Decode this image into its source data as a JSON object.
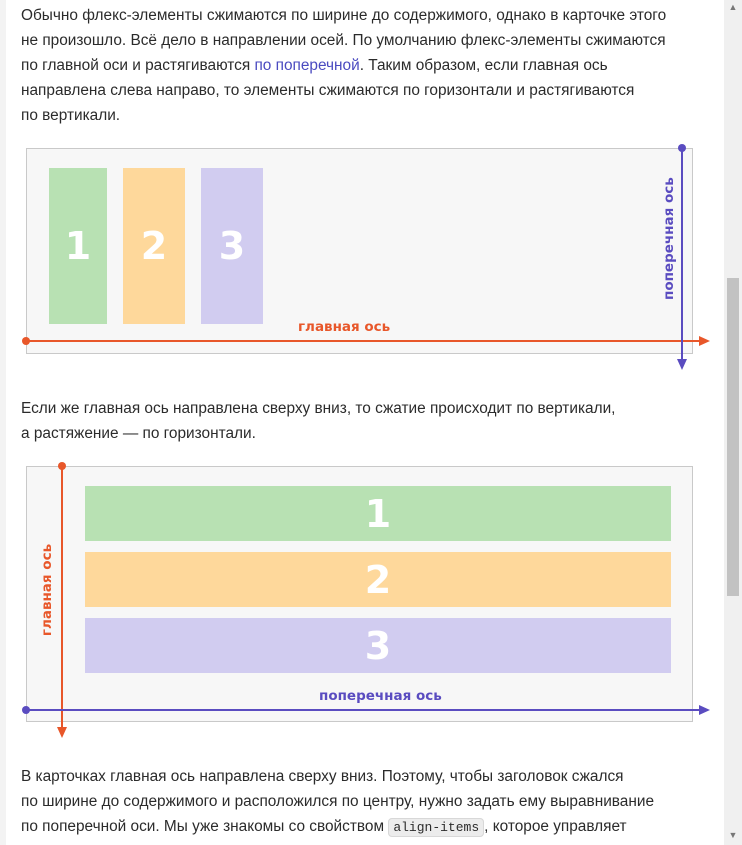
{
  "paragraph1": {
    "line1": "Обычно флекс-элементы сжимаются по ширине до содержимого, однако в карточке этого",
    "line2": "не произошло. Всё дело в направлении осей. По умолчанию флекс-элементы сжимаются",
    "line3_before": "по главной оси и растягиваются ",
    "line3_link": "по поперечной",
    "line3_after": ". Таким образом, если главная ось",
    "line4": "направлена слева направо, то элементы сжимаются по горизонтали и растягиваются",
    "line5": "по вертикали."
  },
  "diagram1": {
    "items": [
      "1",
      "2",
      "3"
    ],
    "main_axis_label": "главная ось",
    "cross_axis_label": "поперечная ось"
  },
  "paragraph2": {
    "line1": "Если же главная ось направлена сверху вниз, то сжатие происходит по вертикали,",
    "line2": "а растяжение — по горизонтали."
  },
  "diagram2": {
    "items": [
      "1",
      "2",
      "3"
    ],
    "main_axis_label": "главная ось",
    "cross_axis_label": "поперечная ось"
  },
  "paragraph3": {
    "line1": "В карточках главная ось направлена сверху вниз. Поэтому, чтобы заголовок сжался",
    "line2": "по ширине до содержимого и расположился по центру, нужно задать ему выравнивание",
    "line3_before": "по поперечной оси. Мы уже знакомы со свойством ",
    "line3_code": "align-items",
    "line3_after": ", которое управляет"
  },
  "colors": {
    "main_axis": "#e8572a",
    "cross_axis": "#5a4cc0",
    "item1": "#b8e1b3",
    "item2": "#fed89b",
    "item3": "#d1ccf0"
  }
}
